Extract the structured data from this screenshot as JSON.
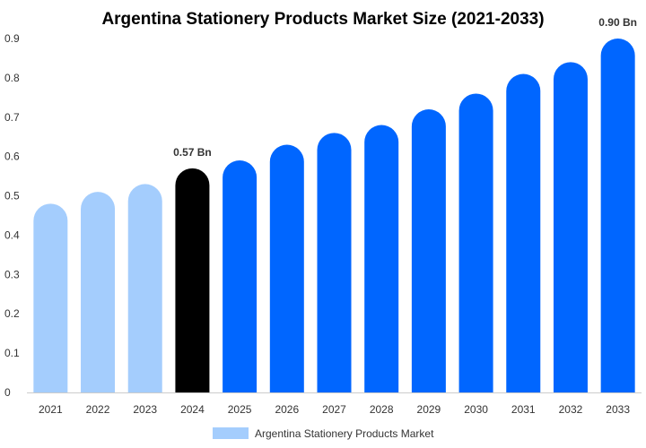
{
  "chart_data": {
    "type": "bar",
    "title": "Argentina Stationery Products Market Size (2021-2033)",
    "xlabel": "",
    "ylabel": "",
    "categories": [
      "2021",
      "2022",
      "2023",
      "2024",
      "2025",
      "2026",
      "2027",
      "2028",
      "2029",
      "2030",
      "2031",
      "2032",
      "2033"
    ],
    "series": [
      {
        "name": "Argentina Stationery Products Market",
        "values": [
          0.48,
          0.51,
          0.53,
          0.57,
          0.59,
          0.63,
          0.66,
          0.68,
          0.72,
          0.76,
          0.81,
          0.84,
          0.9
        ]
      }
    ],
    "ylim": [
      0,
      0.9
    ],
    "yticks": [
      "0",
      "0.1",
      "0.2",
      "0.3",
      "0.4",
      "0.5",
      "0.6",
      "0.7",
      "0.8",
      "0.9"
    ],
    "data_labels": [
      {
        "index": 3,
        "text": "0.57 Bn"
      },
      {
        "index": 12,
        "text": "0.90 Bn"
      }
    ],
    "bar_colors": {
      "historical": "#a4cdfd",
      "current": "#000000",
      "forecast": "#0066ff"
    },
    "historical_count": 3,
    "current_index": 3,
    "legend": {
      "placement": "bottom",
      "label": "Argentina Stationery Products Market",
      "color": "#a4cdfd"
    },
    "grid": false,
    "axis_color": "#cccccc"
  }
}
